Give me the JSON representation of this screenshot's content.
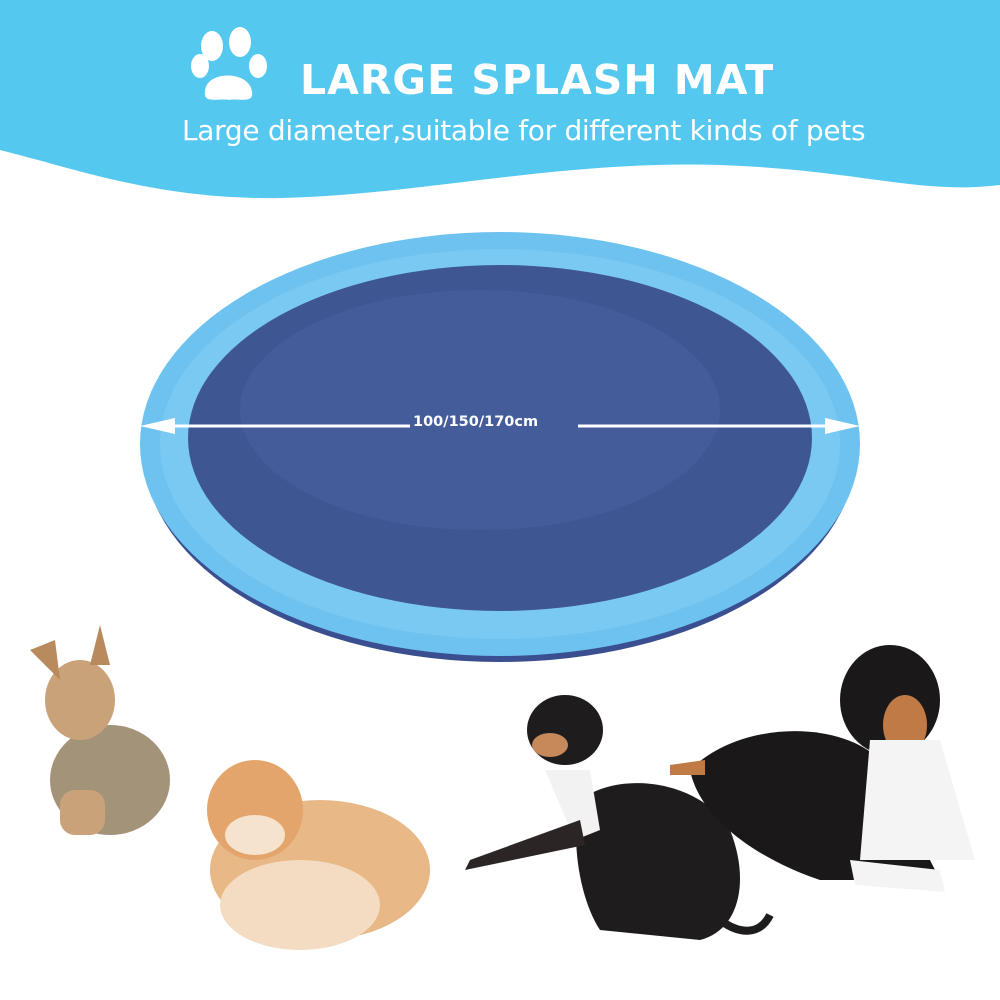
{
  "banner": {
    "title": "LARGE SPLASH MAT",
    "subtitle": "Large diameter,suitable for different kinds of pets",
    "icon": "paw-print-icon",
    "background_color": "#55c8f0"
  },
  "product": {
    "diameter_label": "100/150/170cm",
    "ring_color": "#6ec2ef",
    "mat_color": "#3e5793"
  },
  "dogs": [
    "yorkshire-terrier",
    "pomeranian",
    "beagle-mix",
    "bernese-mix"
  ]
}
